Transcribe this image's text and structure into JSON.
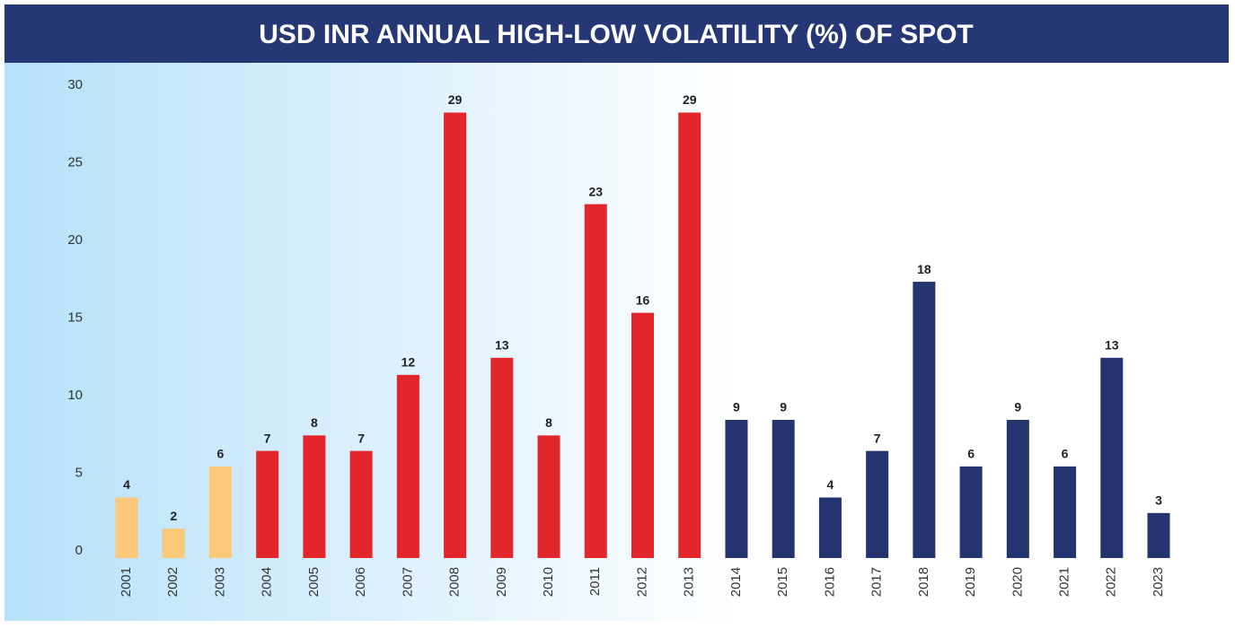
{
  "chart_data": {
    "type": "bar",
    "title": "USD INR ANNUAL HIGH-LOW VOLATILITY (%) OF SPOT",
    "categories": [
      "2001",
      "2002",
      "2003",
      "2004",
      "2005",
      "2006",
      "2007",
      "2008",
      "2009",
      "2010",
      "2011",
      "2012",
      "2013",
      "2014",
      "2015",
      "2016",
      "2017",
      "2018",
      "2019",
      "2020",
      "2021",
      "2022",
      "2023"
    ],
    "values": [
      3.9,
      1.9,
      5.9,
      6.9,
      7.9,
      6.9,
      11.8,
      28.7,
      12.9,
      7.9,
      22.8,
      15.8,
      28.7,
      8.9,
      8.9,
      3.9,
      6.9,
      17.8,
      5.9,
      8.9,
      5.9,
      12.9,
      2.9
    ],
    "value_labels": [
      "4",
      "2",
      "6",
      "7",
      "8",
      "7",
      "12",
      "29",
      "13",
      "8",
      "23",
      "16",
      "29",
      "9",
      "9",
      "4",
      "7",
      "18",
      "6",
      "9",
      "6",
      "13",
      "3"
    ],
    "colors": [
      "#fcc97a",
      "#fcc97a",
      "#fcc97a",
      "#e3262b",
      "#e3262b",
      "#e3262b",
      "#e3262b",
      "#e3262b",
      "#e3262b",
      "#e3262b",
      "#e3262b",
      "#e3262b",
      "#e3262b",
      "#24346f",
      "#24346f",
      "#24346f",
      "#24346f",
      "#24346f",
      "#24346f",
      "#24346f",
      "#24346f",
      "#24346f",
      "#24346f"
    ],
    "ylim": [
      0,
      30
    ],
    "yticks": [
      0,
      5,
      10,
      15,
      20,
      25,
      30
    ],
    "grid": false
  }
}
